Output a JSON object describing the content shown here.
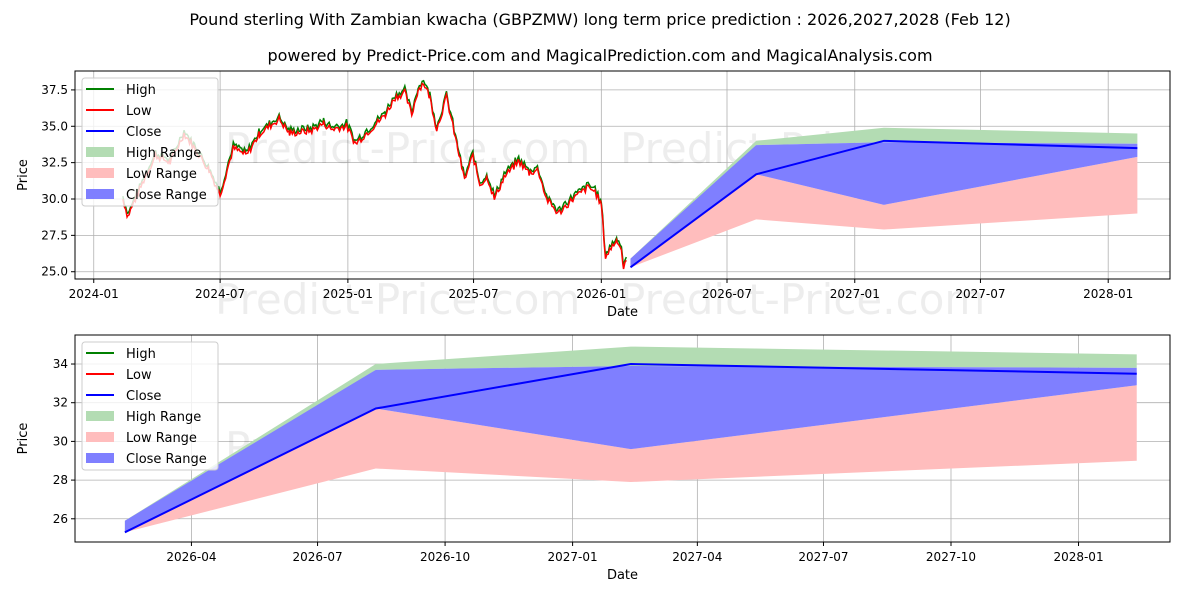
{
  "title": "Pound sterling With Zambian kwacha (GBPZMW) long term price prediction : 2026,2027,2028 (Feb 12)",
  "subtitle": "powered by Predict-Price.com and MagicalPrediction.com and MagicalAnalysis.com",
  "watermark": "Predict-Price.com",
  "colors": {
    "high": "#008000",
    "low": "#ff0000",
    "close": "#0000ff",
    "high_range": "#b3dcb3",
    "low_range": "#ffbdbd",
    "close_range": "#7f7fff"
  },
  "legend": [
    "High",
    "Low",
    "Close",
    "High Range",
    "Low Range",
    "Close Range"
  ],
  "chart_data": [
    {
      "type": "line",
      "xlabel": "Date",
      "ylabel": "Price",
      "xlim": [
        "2023-12-05",
        "2028-03-30"
      ],
      "ylim": [
        24.5,
        38.8
      ],
      "xticks": [
        "2024-01",
        "2024-07",
        "2025-01",
        "2025-07",
        "2026-01",
        "2026-07",
        "2027-01",
        "2027-07",
        "2028-01"
      ],
      "yticks": [
        25.0,
        27.5,
        30.0,
        32.5,
        35.0,
        37.5
      ],
      "grid": true,
      "legend_position": "top-left",
      "history": [
        [
          "2024-02-12",
          30.0
        ],
        [
          "2024-02-19",
          28.8
        ],
        [
          "2024-03-01",
          30.0
        ],
        [
          "2024-03-15",
          31.5
        ],
        [
          "2024-03-30",
          33.0
        ],
        [
          "2024-04-20",
          32.5
        ],
        [
          "2024-05-10",
          34.5
        ],
        [
          "2024-05-25",
          33.5
        ],
        [
          "2024-06-15",
          32.0
        ],
        [
          "2024-07-01",
          30.3
        ],
        [
          "2024-07-20",
          33.5
        ],
        [
          "2024-08-08",
          33.0
        ],
        [
          "2024-08-27",
          34.5
        ],
        [
          "2024-09-24",
          35.5
        ],
        [
          "2024-10-09",
          34.5
        ],
        [
          "2024-11-10",
          34.7
        ],
        [
          "2024-11-27",
          35.2
        ],
        [
          "2024-12-08",
          34.8
        ],
        [
          "2024-12-30",
          35.0
        ],
        [
          "2025-01-12",
          33.8
        ],
        [
          "2025-02-03",
          34.8
        ],
        [
          "2025-02-24",
          35.8
        ],
        [
          "2025-03-10",
          37.0
        ],
        [
          "2025-03-24",
          37.3
        ],
        [
          "2025-04-03",
          35.8
        ],
        [
          "2025-04-12",
          37.5
        ],
        [
          "2025-04-20",
          38.0
        ],
        [
          "2025-04-29",
          37.0
        ],
        [
          "2025-05-09",
          34.8
        ],
        [
          "2025-05-23",
          37.0
        ],
        [
          "2025-05-30",
          35.5
        ],
        [
          "2025-06-08",
          33.5
        ],
        [
          "2025-06-18",
          31.3
        ],
        [
          "2025-06-30",
          33.0
        ],
        [
          "2025-07-10",
          31.0
        ],
        [
          "2025-07-21",
          31.5
        ],
        [
          "2025-07-31",
          30.0
        ],
        [
          "2025-08-14",
          31.5
        ],
        [
          "2025-09-04",
          32.6
        ],
        [
          "2025-09-19",
          31.8
        ],
        [
          "2025-10-02",
          32.0
        ],
        [
          "2025-10-14",
          30.0
        ],
        [
          "2025-10-31",
          29.0
        ],
        [
          "2025-11-21",
          30.0
        ],
        [
          "2025-12-13",
          30.8
        ],
        [
          "2025-12-23",
          30.5
        ],
        [
          "2026-01-01",
          29.6
        ],
        [
          "2026-01-07",
          26.0
        ],
        [
          "2026-01-17",
          26.8
        ],
        [
          "2026-01-24",
          27.2
        ],
        [
          "2026-01-30",
          26.5
        ],
        [
          "2026-02-02",
          25.2
        ],
        [
          "2026-02-07",
          25.8
        ]
      ]
    },
    {
      "type": "line",
      "xlabel": "Date",
      "ylabel": "Price",
      "xlim": [
        "2026-01-07",
        "2028-03-07"
      ],
      "ylim": [
        24.8,
        35.5
      ],
      "xticks": [
        "2026-04",
        "2026-07",
        "2026-10",
        "2027-01",
        "2027-04",
        "2027-07",
        "2027-10",
        "2028-01"
      ],
      "yticks": [
        26,
        28,
        30,
        32,
        34
      ],
      "grid": true,
      "legend_position": "top-left"
    }
  ],
  "forecast": {
    "dates": [
      "2026-02-12",
      "2026-08-12",
      "2027-02-12",
      "2028-02-12"
    ],
    "close": [
      25.3,
      31.7,
      34.0,
      33.5
    ],
    "high_range": {
      "upper": [
        25.9,
        34.0,
        34.9,
        34.5
      ],
      "lower": [
        25.3,
        33.7,
        33.9,
        33.8
      ]
    },
    "low_range": {
      "upper": [
        25.5,
        31.7,
        29.6,
        32.9
      ],
      "lower": [
        25.3,
        28.6,
        27.9,
        29.0
      ]
    },
    "close_range": {
      "upper": [
        25.9,
        33.7,
        33.9,
        33.8
      ],
      "lower": [
        25.3,
        31.7,
        29.6,
        32.9
      ]
    }
  }
}
